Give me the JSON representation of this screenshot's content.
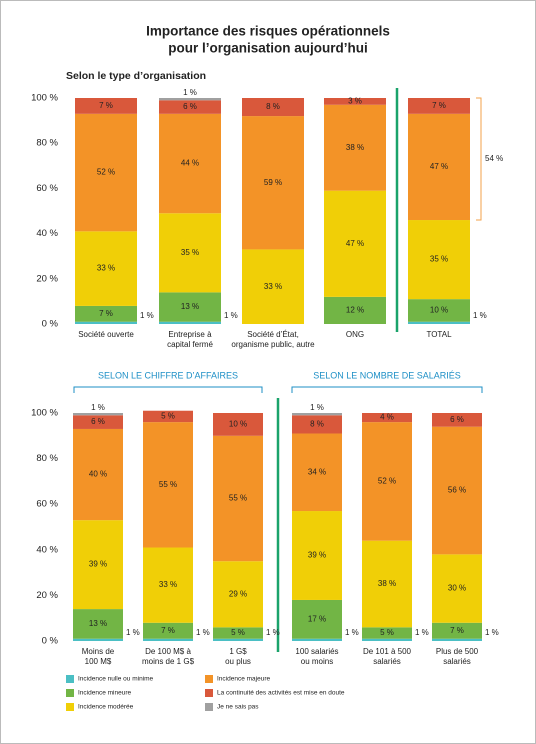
{
  "title": [
    "Importance des risques opérationnels",
    "pour l’organisation aujourd’hui"
  ],
  "chart_data": [
    {
      "type": "bar",
      "stacked": true,
      "subtitle": "Selon le type d’organisation",
      "categories": [
        [
          "Société ouverte"
        ],
        [
          "Entreprise à",
          "capital fermé"
        ],
        [
          "Société d’État,",
          "organisme public, autre"
        ],
        [
          "ONG"
        ],
        [
          "TOTAL"
        ]
      ],
      "ylim": [
        0,
        100
      ],
      "yticks": [
        {
          "value": 0,
          "label": "0 %"
        },
        {
          "value": 20,
          "label": "20 %"
        },
        {
          "value": 40,
          "label": "40 %"
        },
        {
          "value": 60,
          "label": "60 %"
        },
        {
          "value": 80,
          "label": "80 %"
        },
        {
          "value": 100,
          "label": "100 %"
        }
      ],
      "bracket": {
        "value": 54,
        "label": "54 %"
      },
      "series": [
        {
          "name": "Incidence nulle ou minime",
          "color": "#4bbfc4",
          "values": [
            1,
            1,
            null,
            null,
            1
          ],
          "value_labels": [
            "1 %",
            "1 %",
            null,
            null,
            "1 %"
          ]
        },
        {
          "name": "Incidence mineure",
          "color": "#72b545",
          "values": [
            7,
            13,
            null,
            12,
            10
          ],
          "value_labels": [
            "7 %",
            "13 %",
            null,
            "12 %",
            "10 %"
          ]
        },
        {
          "name": "Incidence modérée",
          "color": "#f0cf07",
          "values": [
            33,
            35,
            33,
            47,
            35
          ],
          "value_labels": [
            "33 %",
            "35 %",
            "33 %",
            "47 %",
            "35 %"
          ]
        },
        {
          "name": "Incidence majeure",
          "color": "#f39327",
          "values": [
            52,
            44,
            59,
            38,
            47
          ],
          "value_labels": [
            "52 %",
            "44 %",
            "59 %",
            "38 %",
            "47 %"
          ]
        },
        {
          "name": "La continuité des activités est mise en doute",
          "color": "#d9583b",
          "values": [
            7,
            6,
            8,
            3,
            7
          ],
          "value_labels": [
            "7 %",
            "6 %",
            "8 %",
            "3 %",
            "7 %"
          ]
        },
        {
          "name": "Je ne sais pas",
          "color": "#a0a0a0",
          "values": [
            null,
            1,
            null,
            null,
            null
          ],
          "value_labels": [
            null,
            "1 %",
            null,
            null,
            null
          ]
        }
      ]
    },
    {
      "type": "bar",
      "stacked": true,
      "title": "SELON LE CHIFFRE D’AFFAIRES",
      "categories": [
        [
          "Moins de",
          "100 M$"
        ],
        [
          "De 100 M$ à",
          "moins de 1 G$"
        ],
        [
          "1 G$",
          "ou plus"
        ]
      ],
      "ylim": [
        0,
        100
      ],
      "yticks": [
        {
          "value": 0,
          "label": "0 %"
        },
        {
          "value": 20,
          "label": "20 %"
        },
        {
          "value": 40,
          "label": "40 %"
        },
        {
          "value": 60,
          "label": "60 %"
        },
        {
          "value": 80,
          "label": "80 %"
        },
        {
          "value": 100,
          "label": "100 %"
        }
      ],
      "series": [
        {
          "name": "Incidence nulle ou minime",
          "color": "#4bbfc4",
          "values": [
            1,
            1,
            1
          ],
          "value_labels": [
            "1 %",
            "1 %",
            "1 %"
          ]
        },
        {
          "name": "Incidence mineure",
          "color": "#72b545",
          "values": [
            13,
            7,
            5
          ],
          "value_labels": [
            "13 %",
            "7 %",
            "5 %"
          ]
        },
        {
          "name": "Incidence modérée",
          "color": "#f0cf07",
          "values": [
            39,
            33,
            29
          ],
          "value_labels": [
            "39 %",
            "33 %",
            "29 %"
          ]
        },
        {
          "name": "Incidence majeure",
          "color": "#f39327",
          "values": [
            40,
            55,
            55
          ],
          "value_labels": [
            "40 %",
            "55 %",
            "55 %"
          ]
        },
        {
          "name": "La continuité des activités est mise en doute",
          "color": "#d9583b",
          "values": [
            6,
            5,
            10
          ],
          "value_labels": [
            "6 %",
            "5 %",
            "10 %"
          ]
        },
        {
          "name": "Je ne sais pas",
          "color": "#a0a0a0",
          "values": [
            1,
            null,
            null
          ],
          "value_labels": [
            "1 %",
            null,
            null
          ]
        }
      ]
    },
    {
      "type": "bar",
      "stacked": true,
      "title": "SELON LE NOMBRE DE SALARIÉS",
      "categories": [
        [
          "100 salariés",
          "ou moins"
        ],
        [
          "De 101 à 500",
          "salariés"
        ],
        [
          "Plus de 500",
          "salariés"
        ]
      ],
      "ylim": [
        0,
        100
      ],
      "series": [
        {
          "name": "Incidence nulle ou minime",
          "color": "#4bbfc4",
          "values": [
            1,
            1,
            1
          ],
          "value_labels": [
            "1 %",
            "1 %",
            "1 %"
          ]
        },
        {
          "name": "Incidence mineure",
          "color": "#72b545",
          "values": [
            17,
            5,
            7
          ],
          "value_labels": [
            "17 %",
            "5 %",
            "7 %"
          ]
        },
        {
          "name": "Incidence modérée",
          "color": "#f0cf07",
          "values": [
            39,
            38,
            30
          ],
          "value_labels": [
            "39 %",
            "38 %",
            "30 %"
          ]
        },
        {
          "name": "Incidence majeure",
          "color": "#f39327",
          "values": [
            34,
            52,
            56
          ],
          "value_labels": [
            "34 %",
            "52 %",
            "56 %"
          ]
        },
        {
          "name": "La continuité des activités est mise en doute",
          "color": "#d9583b",
          "values": [
            8,
            4,
            6
          ],
          "value_labels": [
            "8 %",
            "4 %",
            "6 %"
          ]
        },
        {
          "name": "Je ne sais pas",
          "color": "#a0a0a0",
          "values": [
            1,
            null,
            null
          ],
          "value_labels": [
            "1 %",
            null,
            null
          ]
        }
      ]
    }
  ]
}
